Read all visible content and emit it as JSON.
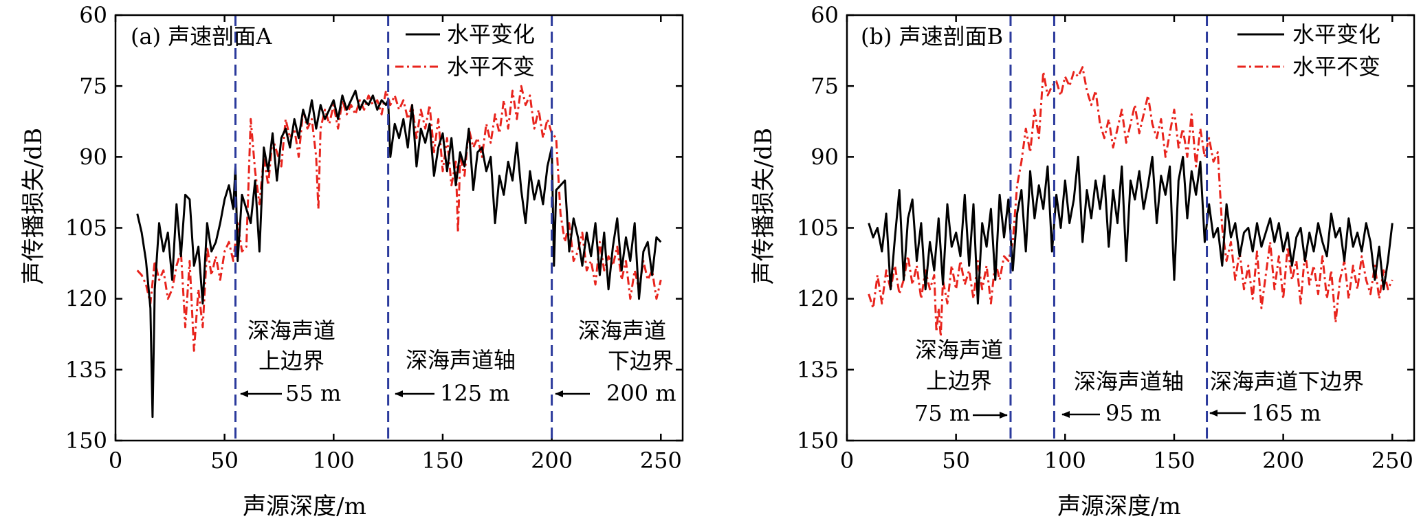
{
  "chart_data": [
    {
      "type": "line",
      "title": "(a) 声速剖面A",
      "xlabel": "声源深度/m",
      "ylabel": "声传播损失/dB",
      "xlim": [
        0,
        260
      ],
      "ylim": [
        150,
        60
      ],
      "y_inverted": true,
      "xticks": [
        0,
        50,
        100,
        150,
        200,
        250
      ],
      "yticks": [
        60,
        75,
        90,
        105,
        120,
        135,
        150
      ],
      "legend_position": "top-right",
      "series": [
        {
          "name": "水平变化",
          "style": "solid",
          "color": "#000000",
          "x": [
            10,
            12,
            14,
            16,
            17,
            18,
            20,
            22,
            24,
            26,
            28,
            30,
            32,
            34,
            36,
            38,
            40,
            42,
            44,
            46,
            48,
            50,
            52,
            54,
            55,
            56,
            58,
            60,
            62,
            64,
            66,
            68,
            70,
            72,
            74,
            76,
            78,
            80,
            82,
            84,
            86,
            88,
            90,
            92,
            94,
            96,
            98,
            100,
            102,
            104,
            106,
            108,
            110,
            112,
            114,
            116,
            118,
            120,
            122,
            124,
            125,
            126,
            128,
            130,
            132,
            134,
            136,
            138,
            140,
            142,
            144,
            146,
            148,
            150,
            152,
            154,
            156,
            158,
            160,
            162,
            164,
            166,
            168,
            170,
            172,
            174,
            176,
            178,
            180,
            182,
            184,
            186,
            188,
            190,
            192,
            194,
            196,
            198,
            200,
            201,
            202,
            204,
            206,
            208,
            210,
            212,
            214,
            216,
            218,
            220,
            222,
            224,
            226,
            228,
            230,
            232,
            234,
            236,
            238,
            240,
            242,
            244,
            246,
            248,
            250
          ],
          "y": [
            102,
            106,
            112,
            122,
            145,
            118,
            104,
            110,
            106,
            116,
            100,
            111,
            98,
            99,
            113,
            109,
            121,
            104,
            110,
            108,
            104,
            99,
            96,
            101,
            92,
            112,
            98,
            101,
            104,
            95,
            110,
            88,
            93,
            85,
            95,
            86,
            84,
            88,
            82,
            86,
            80,
            83,
            78,
            84,
            79,
            82,
            80,
            78,
            82,
            77,
            80,
            78,
            76,
            80,
            78,
            79,
            77,
            80,
            78,
            79,
            78,
            90,
            83,
            86,
            82,
            88,
            79,
            92,
            84,
            87,
            83,
            94,
            88,
            85,
            93,
            86,
            96,
            89,
            92,
            84,
            97,
            89,
            88,
            93,
            90,
            104,
            94,
            98,
            91,
            95,
            87,
            97,
            104,
            93,
            99,
            95,
            100,
            92,
            88,
            113,
            97,
            96,
            95,
            110,
            103,
            107,
            113,
            106,
            111,
            104,
            115,
            106,
            118,
            109,
            103,
            114,
            107,
            112,
            104,
            120,
            110,
            108,
            115,
            107,
            108
          ]
        },
        {
          "name": "水平不变",
          "style": "dash-dot",
          "color": "#e8241d",
          "x": [
            10,
            12,
            14,
            16,
            18,
            20,
            22,
            24,
            26,
            28,
            30,
            32,
            34,
            36,
            38,
            40,
            42,
            44,
            46,
            48,
            50,
            52,
            54,
            56,
            58,
            60,
            62,
            64,
            66,
            68,
            70,
            72,
            74,
            76,
            78,
            80,
            82,
            84,
            86,
            88,
            90,
            92,
            93,
            94,
            96,
            98,
            100,
            102,
            104,
            106,
            108,
            110,
            112,
            114,
            116,
            118,
            120,
            122,
            124,
            126,
            128,
            130,
            132,
            134,
            136,
            138,
            140,
            142,
            144,
            146,
            148,
            150,
            152,
            154,
            156,
            157,
            158,
            160,
            162,
            164,
            166,
            168,
            170,
            172,
            174,
            176,
            178,
            180,
            182,
            184,
            186,
            188,
            190,
            192,
            194,
            196,
            198,
            200,
            202,
            204,
            206,
            208,
            210,
            212,
            214,
            216,
            218,
            220,
            222,
            224,
            226,
            228,
            230,
            232,
            234,
            236,
            238,
            240,
            242,
            244,
            246,
            248,
            250
          ],
          "y": [
            114,
            115,
            117,
            121,
            112,
            116,
            114,
            120,
            118,
            113,
            110,
            126,
            112,
            131,
            118,
            126,
            109,
            115,
            111,
            116,
            110,
            108,
            112,
            104,
            110,
            109,
            82,
            93,
            100,
            90,
            96,
            86,
            89,
            92,
            82,
            86,
            84,
            90,
            80,
            84,
            82,
            90,
            101,
            84,
            80,
            83,
            79,
            84,
            78,
            81,
            79,
            81,
            78,
            80,
            77,
            79,
            78,
            81,
            76,
            79,
            77,
            80,
            78,
            82,
            79,
            86,
            80,
            84,
            79,
            89,
            82,
            93,
            86,
            96,
            91,
            106,
            90,
            94,
            84,
            88,
            86,
            90,
            83,
            87,
            81,
            85,
            78,
            84,
            76,
            82,
            75,
            79,
            77,
            84,
            80,
            86,
            82,
            85,
            86,
            102,
            108,
            104,
            112,
            110,
            106,
            114,
            112,
            117,
            108,
            114,
            111,
            113,
            109,
            116,
            112,
            120,
            114,
            118,
            112,
            116,
            114,
            120,
            116
          ]
        }
      ],
      "markers": [
        {
          "depth": 55,
          "label": "深海声道上边界",
          "annotation": "55 m"
        },
        {
          "depth": 125,
          "label": "深海声道轴",
          "annotation": "125 m"
        },
        {
          "depth": 200,
          "label": "深海声道下边界",
          "annotation": "200 m"
        }
      ]
    },
    {
      "type": "line",
      "title": "(b) 声速剖面B",
      "xlabel": "声源深度/m",
      "ylabel": "声传播损失/dB",
      "xlim": [
        0,
        260
      ],
      "ylim": [
        150,
        60
      ],
      "y_inverted": true,
      "xticks": [
        0,
        50,
        100,
        150,
        200,
        250
      ],
      "yticks": [
        60,
        75,
        90,
        105,
        120,
        135,
        150
      ],
      "legend_position": "top-right",
      "series": [
        {
          "name": "水平变化",
          "style": "solid",
          "color": "#000000",
          "x": [
            10,
            12,
            14,
            16,
            18,
            20,
            22,
            24,
            26,
            28,
            30,
            32,
            34,
            36,
            38,
            40,
            42,
            44,
            46,
            48,
            50,
            52,
            54,
            56,
            58,
            60,
            62,
            64,
            66,
            68,
            70,
            72,
            74,
            76,
            78,
            80,
            82,
            84,
            86,
            88,
            90,
            92,
            94,
            96,
            98,
            100,
            102,
            104,
            106,
            108,
            110,
            112,
            114,
            116,
            118,
            120,
            122,
            124,
            126,
            128,
            130,
            132,
            134,
            136,
            138,
            140,
            142,
            144,
            146,
            148,
            150,
            152,
            154,
            156,
            158,
            160,
            162,
            164,
            166,
            168,
            170,
            172,
            174,
            176,
            178,
            180,
            182,
            184,
            186,
            188,
            190,
            192,
            194,
            196,
            198,
            200,
            202,
            204,
            206,
            208,
            210,
            212,
            214,
            216,
            218,
            220,
            222,
            224,
            226,
            228,
            230,
            232,
            234,
            236,
            238,
            240,
            242,
            244,
            246,
            248,
            250
          ],
          "y": [
            104,
            107,
            105,
            110,
            102,
            118,
            107,
            97,
            116,
            103,
            99,
            112,
            104,
            118,
            108,
            114,
            103,
            117,
            100,
            109,
            106,
            111,
            98,
            113,
            100,
            121,
            104,
            109,
            101,
            116,
            98,
            107,
            99,
            114,
            102,
            97,
            110,
            93,
            103,
            96,
            101,
            92,
            110,
            98,
            105,
            95,
            104,
            99,
            90,
            108,
            97,
            103,
            95,
            101,
            94,
            109,
            97,
            104,
            92,
            112,
            95,
            99,
            93,
            101,
            96,
            90,
            104,
            94,
            98,
            92,
            116,
            95,
            90,
            103,
            93,
            98,
            91,
            108,
            100,
            107,
            105,
            113,
            100,
            107,
            104,
            111,
            106,
            105,
            110,
            104,
            109,
            106,
            103,
            108,
            104,
            110,
            106,
            113,
            107,
            105,
            112,
            106,
            110,
            104,
            108,
            111,
            102,
            107,
            105,
            112,
            103,
            109,
            106,
            110,
            104,
            108,
            116,
            109,
            118,
            112,
            104
          ]
        },
        {
          "name": "水平不变",
          "style": "dash-dot",
          "color": "#e8241d",
          "x": [
            10,
            12,
            14,
            16,
            18,
            20,
            22,
            24,
            26,
            28,
            30,
            32,
            34,
            36,
            38,
            40,
            41,
            42,
            43,
            44,
            46,
            48,
            50,
            52,
            54,
            56,
            58,
            60,
            62,
            64,
            66,
            68,
            70,
            72,
            74,
            76,
            78,
            80,
            82,
            84,
            86,
            88,
            90,
            92,
            94,
            96,
            98,
            100,
            102,
            104,
            106,
            108,
            110,
            112,
            114,
            116,
            118,
            120,
            122,
            124,
            126,
            128,
            130,
            132,
            134,
            136,
            138,
            140,
            142,
            144,
            146,
            148,
            150,
            152,
            154,
            156,
            158,
            160,
            162,
            164,
            166,
            168,
            170,
            172,
            174,
            176,
            178,
            180,
            182,
            184,
            186,
            188,
            190,
            192,
            194,
            196,
            198,
            200,
            202,
            204,
            206,
            208,
            210,
            212,
            214,
            216,
            218,
            220,
            222,
            224,
            226,
            228,
            230,
            232,
            234,
            236,
            238,
            240,
            242,
            244,
            246,
            248,
            250
          ],
          "y": [
            119,
            122,
            115,
            121,
            114,
            118,
            113,
            119,
            116,
            111,
            117,
            113,
            120,
            114,
            118,
            115,
            127,
            122,
            128,
            116,
            121,
            113,
            118,
            112,
            117,
            114,
            120,
            112,
            118,
            113,
            121,
            112,
            116,
            111,
            112,
            108,
            96,
            91,
            84,
            89,
            80,
            86,
            72,
            77,
            75,
            74,
            77,
            73,
            75,
            72,
            73,
            71,
            76,
            79,
            76,
            83,
            86,
            82,
            88,
            84,
            80,
            87,
            83,
            79,
            85,
            81,
            77,
            83,
            86,
            82,
            90,
            85,
            80,
            88,
            84,
            90,
            81,
            92,
            84,
            90,
            86,
            91,
            89,
            105,
            112,
            108,
            116,
            110,
            118,
            113,
            120,
            110,
            122,
            115,
            108,
            118,
            111,
            120,
            109,
            116,
            112,
            121,
            110,
            117,
            113,
            119,
            111,
            120,
            114,
            125,
            116,
            112,
            120,
            113,
            118,
            111,
            116,
            119,
            113,
            120,
            114,
            118,
            116
          ]
        }
      ],
      "markers": [
        {
          "depth": 75,
          "label": "深海声道上边界",
          "annotation": "75 m"
        },
        {
          "depth": 95,
          "label": "深海声道轴",
          "annotation": "95 m"
        },
        {
          "depth": 165,
          "label": "深海声道下边界",
          "annotation": "165 m"
        }
      ]
    }
  ]
}
